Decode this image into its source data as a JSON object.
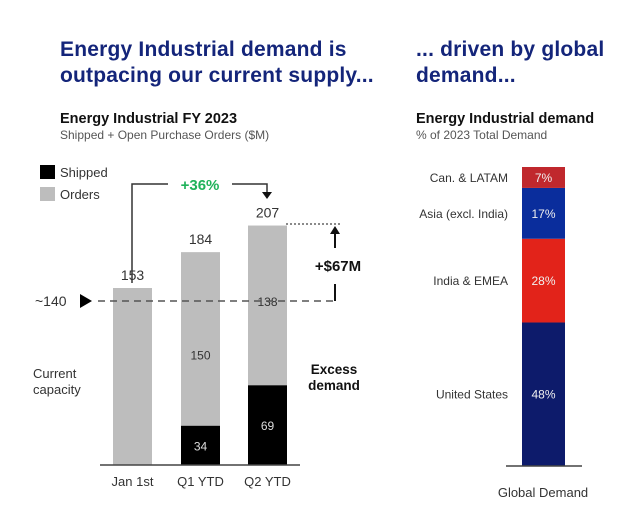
{
  "left_panel": {
    "headline_line1": "Energy Industrial demand is",
    "headline_line2": "outpacing our current supply...",
    "chart_title": "Energy Industrial FY 2023",
    "chart_subtitle": "Shipped + Open Purchase Orders ($M)"
  },
  "right_panel": {
    "headline_line1": "... driven by global",
    "headline_line2": "demand...",
    "chart_title": "Energy Industrial demand",
    "chart_subtitle": "% of 2023 Total Demand"
  },
  "chart_data": [
    {
      "type": "bar",
      "stacked": true,
      "title": "Energy Industrial FY 2023",
      "subtitle": "Shipped + Open Purchase Orders ($M)",
      "categories": [
        "Jan 1st",
        "Q1 YTD",
        "Q2 YTD"
      ],
      "series": [
        {
          "name": "Shipped",
          "color": "#000000",
          "values": [
            0,
            34,
            69
          ],
          "labels": [
            "",
            "34",
            "69"
          ]
        },
        {
          "name": "Orders",
          "color": "#bdbdbd",
          "values": [
            153,
            150,
            138
          ],
          "labels": [
            "",
            "150",
            "138"
          ]
        }
      ],
      "totals": [
        153,
        184,
        207
      ],
      "legend": {
        "position": "top-left",
        "entries": [
          "Shipped",
          "Orders"
        ]
      },
      "ylim": [
        0,
        207
      ],
      "grid": false,
      "annotations": {
        "growth_label": "+36%",
        "growth_color": "#1fb25a",
        "capacity_value": 140,
        "capacity_label": "~140",
        "capacity_caption_line1": "Current",
        "capacity_caption_line2": "capacity",
        "gap_label": "+$67M",
        "excess_line1": "Excess",
        "excess_line2": "demand"
      }
    },
    {
      "type": "bar",
      "stacked": true,
      "title": "Energy Industrial demand",
      "subtitle": "% of 2023 Total Demand",
      "categories": [
        "Global Demand"
      ],
      "segments": [
        {
          "name": "United States",
          "value": 48,
          "label": "48%",
          "color": "#0d1b6b"
        },
        {
          "name": "India & EMEA",
          "value": 28,
          "label": "28%",
          "color": "#e2231a"
        },
        {
          "name": "Asia (excl. India)",
          "value": 17,
          "label": "17%",
          "color": "#0a2d9c"
        },
        {
          "name": "Can. & LATAM",
          "value": 7,
          "label": "7%",
          "color": "#c0282d"
        }
      ],
      "ylim": [
        0,
        100
      ],
      "grid": false
    }
  ]
}
